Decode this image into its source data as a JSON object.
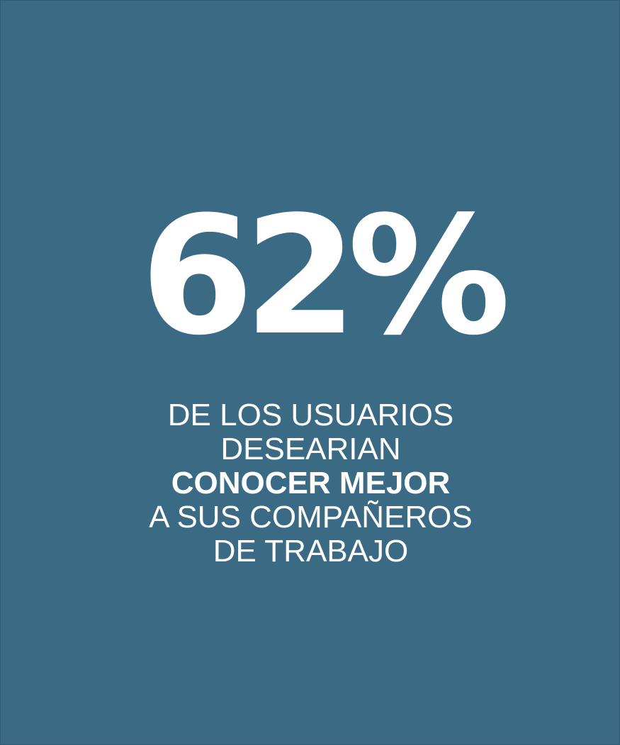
{
  "statistic": {
    "value": "62%"
  },
  "caption": {
    "line1": "DE LOS USUARIOS",
    "line2": "DESEARIAN",
    "line3": "CONOCER MEJOR",
    "line4": "A SUS COMPAÑEROS",
    "line5": "DE TRABAJO"
  },
  "colors": {
    "background": "#3b6a85",
    "text": "#ffffff"
  }
}
